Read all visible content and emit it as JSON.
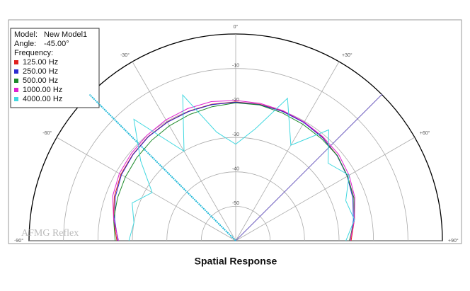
{
  "chart_data": {
    "type": "polar",
    "title": "Spatial Response",
    "watermark": "AFMG Reflex",
    "info": {
      "model_label": "Model:",
      "model": "New Model1",
      "angle_label": "Angle:"
    },
    "angle": {
      "value": -45,
      "label": "-45.00°"
    },
    "legend_title": "Frequency:",
    "x": [
      -90,
      -80,
      -70,
      -60,
      -50,
      -40,
      -30,
      -20,
      -10,
      0,
      10,
      20,
      30,
      40,
      50,
      60,
      70,
      80,
      90
    ],
    "xlim": [
      -90,
      90
    ],
    "xticks": [
      {
        "value": -90,
        "label": "-90°"
      },
      {
        "value": -60,
        "label": "-60°"
      },
      {
        "value": -30,
        "label": "-30°"
      },
      {
        "value": 0,
        "label": "0°"
      },
      {
        "value": 30,
        "label": "+30°"
      },
      {
        "value": 60,
        "label": "+60°"
      },
      {
        "value": 90,
        "label": "+90°"
      }
    ],
    "ylim": [
      -60,
      0
    ],
    "yticks": [
      -50,
      -40,
      -30,
      -20,
      -10
    ],
    "series": [
      {
        "name": "125.00 Hz",
        "color": "#e0201e",
        "values": [
          -25.5,
          -24,
          -22.5,
          -21.5,
          -21,
          -20.5,
          -20.2,
          -20,
          -19.8,
          -19.7,
          -19.8,
          -20,
          -20.3,
          -20.8,
          -21.5,
          -22.5,
          -23.5,
          -25,
          -26.5
        ]
      },
      {
        "name": "250.00 Hz",
        "color": "#2a2ad0",
        "values": [
          -25.8,
          -24.3,
          -22.8,
          -21.7,
          -21.1,
          -20.6,
          -20.3,
          -20.1,
          -19.9,
          -19.8,
          -19.9,
          -20.1,
          -20.4,
          -20.9,
          -21.6,
          -22.6,
          -23.8,
          -25.3,
          -26.8
        ]
      },
      {
        "name": "500.00 Hz",
        "color": "#1c8a2a",
        "values": [
          -25,
          -24,
          -23.5,
          -23,
          -22.5,
          -22,
          -21.5,
          -21,
          -20.5,
          -20,
          -20,
          -20.5,
          -21,
          -21.3,
          -21.5,
          -22.5,
          -23.5,
          -25,
          -27
        ]
      },
      {
        "name": "1000.00 Hz",
        "color": "#e020d0",
        "values": [
          -26,
          -24,
          -22,
          -21,
          -20.5,
          -20,
          -19.5,
          -19.2,
          -19,
          -19.3,
          -19.5,
          -19.8,
          -20.2,
          -20.6,
          -21,
          -22,
          -23.2,
          -25,
          -26.8
        ]
      },
      {
        "name": "4000.00 Hz",
        "color": "#40d8e0",
        "values": [
          -29,
          -30,
          -28,
          -32,
          -24,
          -14,
          -30,
          -15,
          -28,
          -32,
          -27,
          -16,
          -28,
          -18,
          -25,
          -22,
          -26,
          -25,
          -28
        ]
      }
    ]
  }
}
